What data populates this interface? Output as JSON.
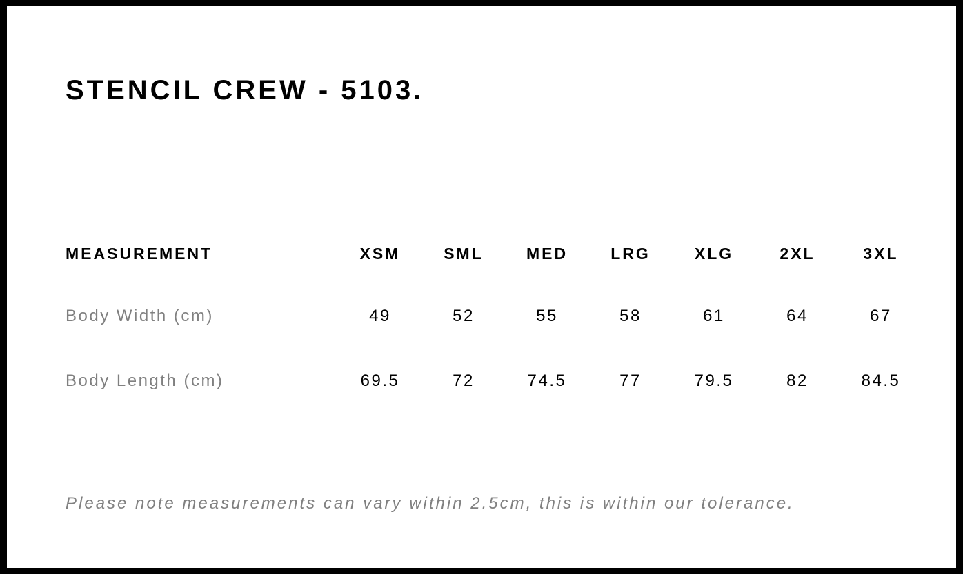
{
  "title": "STENCIL CREW - 5103.",
  "table": {
    "header_label": "MEASUREMENT",
    "sizes": [
      "XSM",
      "SML",
      "MED",
      "LRG",
      "XLG",
      "2XL",
      "3XL"
    ],
    "rows": [
      {
        "label": "Body Width (cm)",
        "values": [
          "49",
          "52",
          "55",
          "58",
          "61",
          "64",
          "67"
        ]
      },
      {
        "label": "Body Length (cm)",
        "values": [
          "69.5",
          "72",
          "74.5",
          "77",
          "79.5",
          "82",
          "84.5"
        ]
      }
    ]
  },
  "note": "Please note measurements can vary within 2.5cm, this is within our tolerance."
}
